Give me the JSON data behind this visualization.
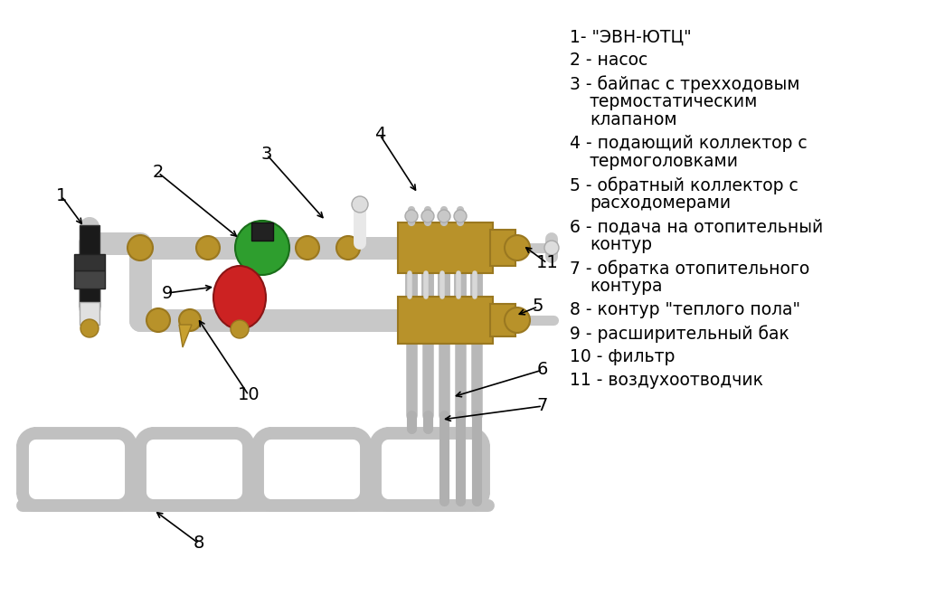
{
  "bg_color": "#ffffff",
  "pipe_color": "#c8c8c8",
  "pipe_outline": "#a0a0a0",
  "brass_color": "#b8922a",
  "brass_dark": "#9a7820",
  "green_color": "#2e9e2e",
  "red_color": "#cc2222",
  "black_color": "#1a1a1a",
  "dark_gray": "#555555",
  "silver": "#d0d0d0",
  "white_fitting": "#e8e8e8",
  "legend_lines": [
    "1- \"ЭВН-ЮТЦ\"",
    "2 - насос",
    "3 - байпас с трехходовым",
    "    термостатическим",
    "    клапаном",
    "4 - подающий коллектор с",
    "    термоголовками",
    "5 - обратный коллектор с",
    "    расходомерами",
    "6 - подача на отопительный",
    "    контур",
    "7 - обратка отопительного",
    "    контура",
    "8 - контур \"теплого пола\"",
    "9 - расширительный бак",
    "10 - фильтр",
    "11 - воздухоотводчик"
  ],
  "label_fontsize": 14,
  "legend_fontsize": 13.5
}
